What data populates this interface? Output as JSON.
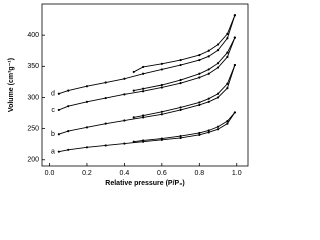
{
  "chart_data": {
    "type": "line",
    "xlabel": "Relative pressure (P/P₀)",
    "ylabel": "Volume (cm³g⁻¹)",
    "xlim": [
      -0.04,
      1.06
    ],
    "ylim": [
      190,
      450
    ],
    "xticks": [
      {
        "value": 0,
        "label": "0.0"
      },
      {
        "value": 0.2,
        "label": "0.2"
      },
      {
        "value": 0.4,
        "label": "0.4"
      },
      {
        "value": 0.6,
        "label": "0.6"
      },
      {
        "value": 0.8,
        "label": "0.8"
      },
      {
        "value": 1,
        "label": "1.0"
      }
    ],
    "yticks": [
      200,
      250,
      300,
      350,
      400
    ],
    "color": "#000000",
    "series": [
      {
        "name": "a",
        "x": [
          0.05,
          0.1,
          0.2,
          0.3,
          0.4,
          0.5,
          0.6,
          0.7,
          0.8,
          0.85,
          0.9,
          0.95,
          0.99
        ],
        "values": [
          213,
          216,
          220,
          223,
          226,
          229,
          232,
          235,
          240,
          244,
          249,
          258,
          276
        ],
        "desorption_x": [
          0.99,
          0.95,
          0.9,
          0.85,
          0.8,
          0.7,
          0.6,
          0.5,
          0.45
        ],
        "desorption_values": [
          276,
          262,
          253,
          247,
          243,
          238,
          234,
          231,
          229
        ]
      },
      {
        "name": "b",
        "x": [
          0.05,
          0.1,
          0.2,
          0.3,
          0.4,
          0.5,
          0.6,
          0.7,
          0.8,
          0.85,
          0.9,
          0.95,
          0.99
        ],
        "values": [
          241,
          246,
          252,
          258,
          263,
          268,
          273,
          280,
          288,
          293,
          300,
          315,
          352
        ],
        "desorption_x": [
          0.99,
          0.95,
          0.9,
          0.85,
          0.8,
          0.7,
          0.6,
          0.5,
          0.45
        ],
        "desorption_values": [
          352,
          322,
          306,
          298,
          292,
          284,
          277,
          271,
          268
        ]
      },
      {
        "name": "c",
        "x": [
          0.05,
          0.1,
          0.2,
          0.3,
          0.4,
          0.5,
          0.6,
          0.7,
          0.8,
          0.85,
          0.9,
          0.95,
          0.99
        ],
        "values": [
          280,
          286,
          293,
          299,
          305,
          310,
          316,
          323,
          332,
          338,
          348,
          365,
          396
        ],
        "desorption_x": [
          0.99,
          0.95,
          0.9,
          0.85,
          0.8,
          0.7,
          0.6,
          0.5,
          0.45
        ],
        "desorption_values": [
          396,
          372,
          355,
          345,
          338,
          328,
          320,
          314,
          311
        ]
      },
      {
        "name": "d",
        "x": [
          0.05,
          0.1,
          0.2,
          0.3,
          0.4,
          0.5,
          0.6,
          0.7,
          0.8,
          0.85,
          0.9,
          0.95,
          0.99
        ],
        "values": [
          306,
          311,
          318,
          324,
          330,
          338,
          345,
          352,
          360,
          366,
          376,
          395,
          432
        ],
        "desorption_x": [
          0.99,
          0.95,
          0.9,
          0.85,
          0.8,
          0.7,
          0.6,
          0.5,
          0.45
        ],
        "desorption_values": [
          432,
          402,
          385,
          375,
          368,
          360,
          354,
          349,
          341
        ]
      }
    ]
  }
}
